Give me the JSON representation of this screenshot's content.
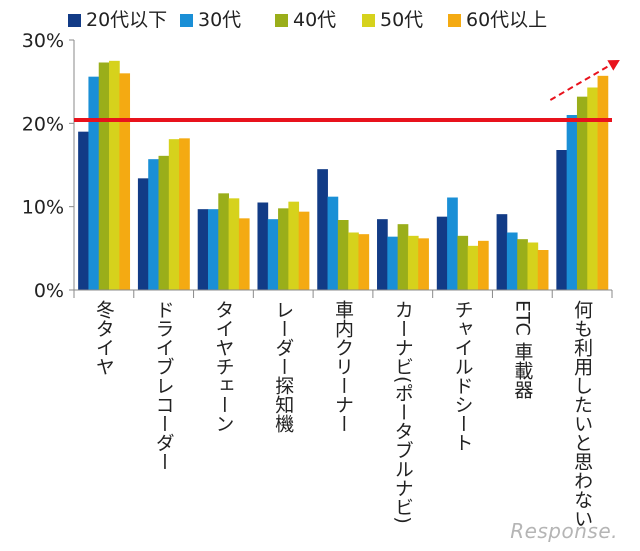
{
  "chart_data": {
    "type": "bar",
    "categories": [
      "冬タイヤ",
      "ドライブレコーダー",
      "タイヤチェーン",
      "レーダー探知機",
      "車内クリーナー",
      "カーナビ(ポータブルナビ)",
      "チャイルドシート",
      "ETC 車載器",
      "何も利用したいと思わない"
    ],
    "series": [
      {
        "name": "20代以下",
        "color": "#123b86",
        "values": [
          19.0,
          13.4,
          9.7,
          10.5,
          14.5,
          8.5,
          8.8,
          9.1,
          16.8
        ]
      },
      {
        "name": "30代",
        "color": "#1a8fd6",
        "values": [
          25.6,
          15.7,
          9.7,
          8.5,
          11.2,
          6.4,
          11.1,
          6.9,
          21.0
        ]
      },
      {
        "name": "40代",
        "color": "#9aae1a",
        "values": [
          27.3,
          16.1,
          11.6,
          9.8,
          8.4,
          7.9,
          6.5,
          6.1,
          23.2
        ]
      },
      {
        "name": "50代",
        "color": "#d6d21c",
        "values": [
          27.5,
          18.1,
          11.0,
          10.6,
          6.9,
          6.5,
          5.3,
          5.7,
          24.3
        ]
      },
      {
        "name": "60代以上",
        "color": "#f4aa12",
        "values": [
          26.0,
          18.2,
          8.6,
          9.4,
          6.7,
          6.2,
          5.9,
          4.8,
          25.7
        ]
      }
    ],
    "yticks": [
      "0%",
      "10%",
      "20%",
      "30%"
    ],
    "ylim": [
      0,
      30
    ],
    "reference_line": 20.4,
    "reference_color": "#e8121c",
    "trend_arrow_color": "#e8121c",
    "legend_position": "top"
  },
  "watermark": "Response."
}
